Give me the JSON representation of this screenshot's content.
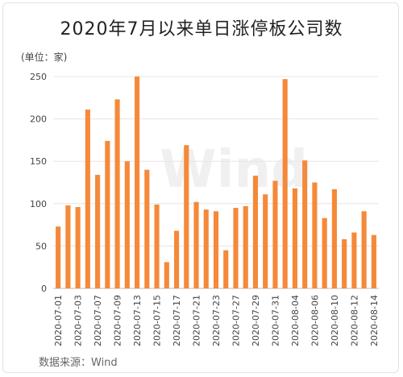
{
  "chart_data": {
    "type": "bar",
    "title": "2020年7月以来单日涨停板公司数",
    "unit_label": "(单位：家)",
    "source": "数据来源：Wind",
    "watermark": "Wind",
    "ylim": [
      0,
      250
    ],
    "yticks": [
      0,
      50,
      100,
      150,
      200,
      250
    ],
    "grid": true,
    "bar_color": "#f5893a",
    "categories": [
      "2020-07-01",
      "2020-07-02",
      "2020-07-03",
      "2020-07-06",
      "2020-07-07",
      "2020-07-08",
      "2020-07-09",
      "2020-07-10",
      "2020-07-13",
      "2020-07-14",
      "2020-07-15",
      "2020-07-16",
      "2020-07-17",
      "2020-07-20",
      "2020-07-21",
      "2020-07-22",
      "2020-07-23",
      "2020-07-24",
      "2020-07-27",
      "2020-07-28",
      "2020-07-29",
      "2020-07-30",
      "2020-07-31",
      "2020-08-03",
      "2020-08-04",
      "2020-08-05",
      "2020-08-06",
      "2020-08-07",
      "2020-08-10",
      "2020-08-11",
      "2020-08-12",
      "2020-08-13",
      "2020-08-14"
    ],
    "values": [
      73,
      98,
      96,
      211,
      134,
      174,
      223,
      150,
      250,
      140,
      99,
      31,
      68,
      169,
      102,
      93,
      91,
      45,
      95,
      97,
      133,
      111,
      127,
      247,
      118,
      151,
      125,
      83,
      117,
      58,
      66,
      91,
      63
    ],
    "xtick_labels": [
      "2020-07-01",
      "2020-07-03",
      "2020-07-07",
      "2020-07-09",
      "2020-07-13",
      "2020-07-15",
      "2020-07-17",
      "2020-07-21",
      "2020-07-23",
      "2020-07-27",
      "2020-07-29",
      "2020-07-31",
      "2020-08-04",
      "2020-08-06",
      "2020-08-10",
      "2020-08-12",
      "2020-08-14"
    ]
  }
}
